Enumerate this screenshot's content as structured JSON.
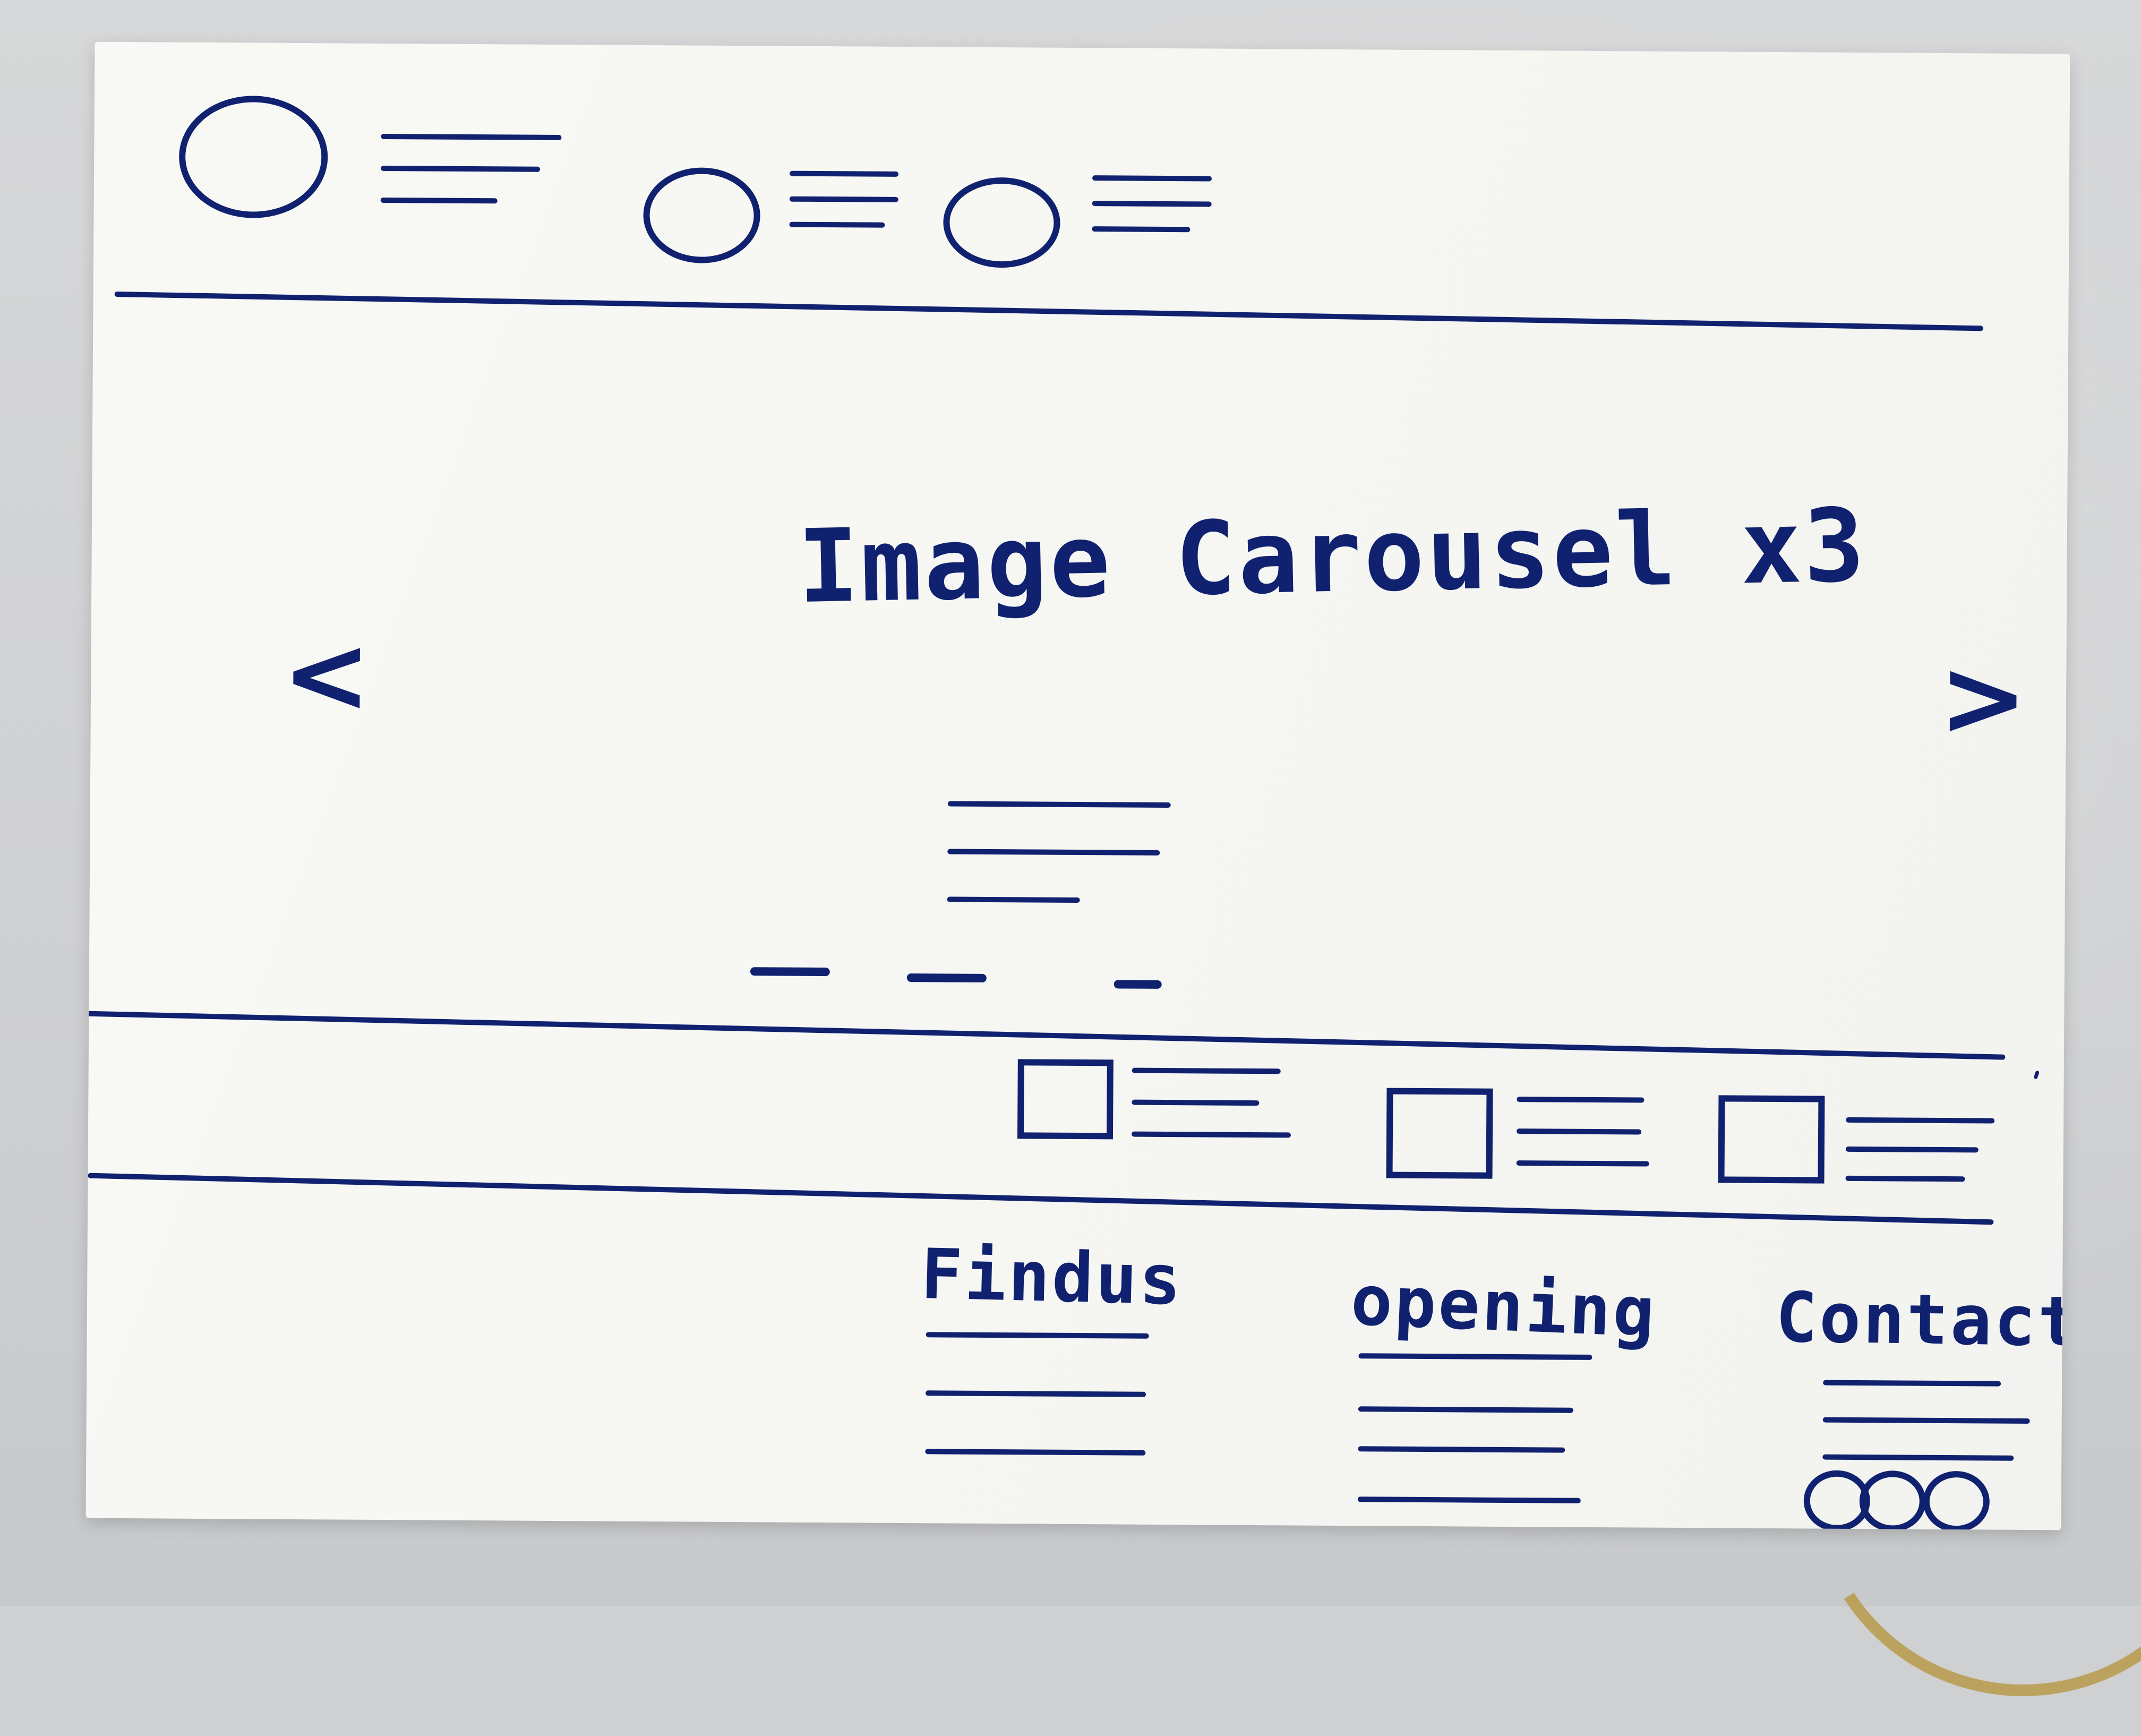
{
  "carousel": {
    "title": "Image Carousel x3",
    "prev_label": "<",
    "next_label": ">"
  },
  "footer": {
    "labels": {
      "find_us": "Findus",
      "opening": "opening",
      "contact": "Contact"
    }
  },
  "icons": {
    "logo": "circle-icon",
    "top_nav_1": "circle-icon",
    "top_nav_2": "circle-icon",
    "feature_1": "square-icon",
    "feature_2": "square-icon",
    "feature_3": "square-icon",
    "social": "circle-icon"
  },
  "colors": {
    "ink": "#10226f",
    "paper": "#f7f7f4",
    "background": "#cfd0d1"
  }
}
